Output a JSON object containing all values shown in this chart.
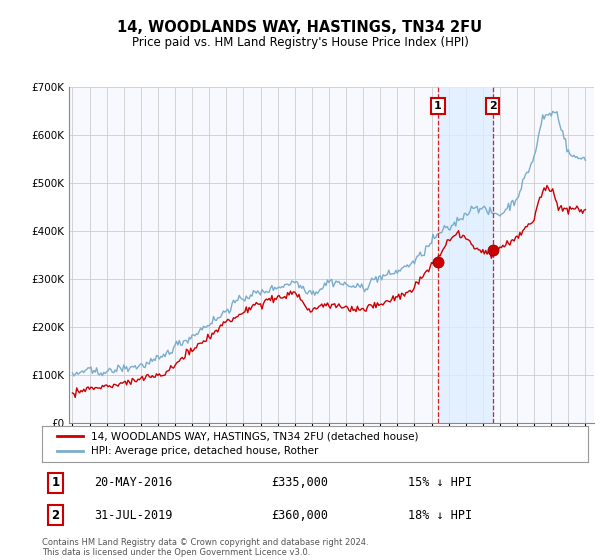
{
  "title": "14, WOODLANDS WAY, HASTINGS, TN34 2FU",
  "subtitle": "Price paid vs. HM Land Registry's House Price Index (HPI)",
  "legend_line1": "14, WOODLANDS WAY, HASTINGS, TN34 2FU (detached house)",
  "legend_line2": "HPI: Average price, detached house, Rother",
  "annotation1_date": "20-MAY-2016",
  "annotation1_price": "£335,000",
  "annotation1_note": "15% ↓ HPI",
  "annotation1_year": 2016.38,
  "annotation1_value": 335000,
  "annotation2_date": "31-JUL-2019",
  "annotation2_price": "£360,000",
  "annotation2_note": "18% ↓ HPI",
  "annotation2_year": 2019.58,
  "annotation2_value": 360000,
  "copyright": "Contains HM Land Registry data © Crown copyright and database right 2024.\nThis data is licensed under the Open Government Licence v3.0.",
  "red_color": "#cc0000",
  "blue_color": "#7aadcc",
  "shade_color": "#ddeeff",
  "bg_color": "#f8f8ff",
  "grid_color": "#cccccc",
  "ylim": [
    0,
    700000
  ],
  "xlim_start": 1994.8,
  "xlim_end": 2025.5
}
